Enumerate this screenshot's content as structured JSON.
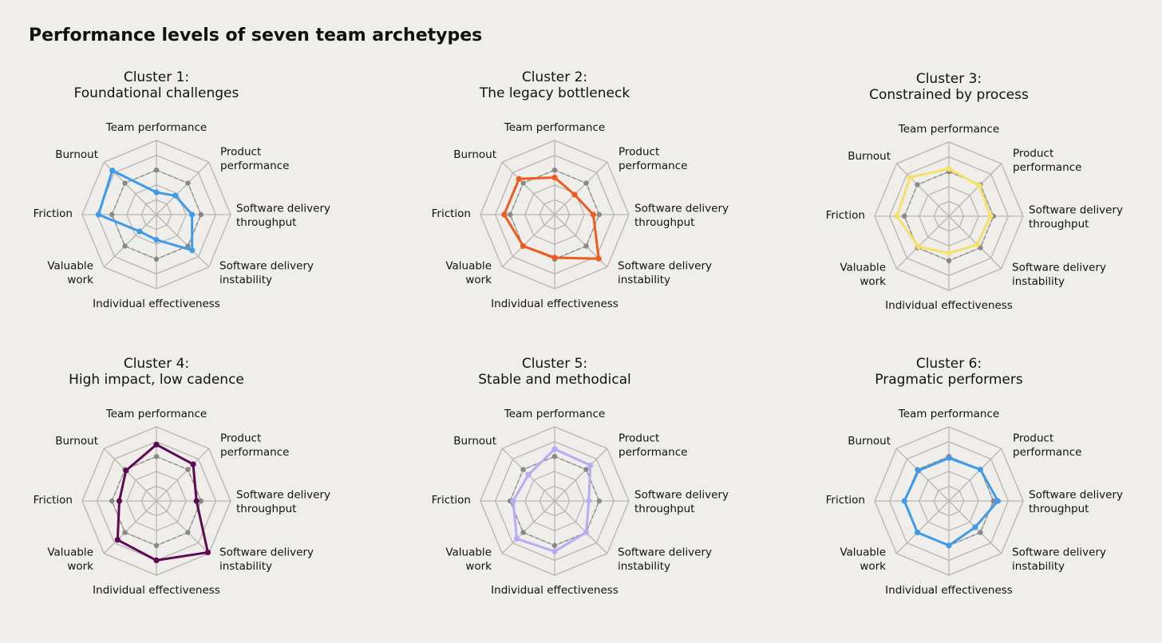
{
  "title": "Performance levels of seven team archetypes",
  "chart_data": [
    {
      "type": "radar",
      "title": [
        "Cluster 1:",
        "Foundational challenges"
      ],
      "categories": [
        [
          "Team performance"
        ],
        [
          "Product",
          "performance"
        ],
        [
          "Software delivery",
          "throughput"
        ],
        [
          "Software delivery",
          "instability"
        ],
        [
          "Individual effectiveness"
        ],
        [
          "Valuable",
          "work"
        ],
        [
          "Friction"
        ],
        [
          "Burnout"
        ]
      ],
      "rlim": [
        0,
        5
      ],
      "rticks": [
        1,
        2,
        3,
        4,
        5
      ],
      "series": [
        {
          "color": "#3d9be9",
          "values": [
            1.5,
            1.8,
            2.4,
            3.4,
            1.7,
            1.6,
            3.9,
            4.2
          ]
        },
        {
          "color": "#888888",
          "dashed": true,
          "values": [
            3,
            3,
            3,
            3,
            3,
            3,
            3,
            3
          ]
        }
      ]
    },
    {
      "type": "radar",
      "title": [
        "Cluster 2:",
        "The legacy bottleneck"
      ],
      "categories": [
        [
          "Team performance"
        ],
        [
          "Product",
          "performance"
        ],
        [
          "Software delivery",
          "throughput"
        ],
        [
          "Software delivery",
          "instability"
        ],
        [
          "Individual effectiveness"
        ],
        [
          "Valuable",
          "work"
        ],
        [
          "Friction"
        ],
        [
          "Burnout"
        ]
      ],
      "rlim": [
        0,
        5
      ],
      "rticks": [
        1,
        2,
        3,
        4,
        5
      ],
      "series": [
        {
          "color": "#ef5a1f",
          "values": [
            2.5,
            1.9,
            2.6,
            4.2,
            2.9,
            3.0,
            3.4,
            3.4
          ]
        },
        {
          "color": "#888888",
          "dashed": true,
          "values": [
            3,
            3,
            3,
            3,
            3,
            3,
            3,
            3
          ]
        }
      ]
    },
    {
      "type": "radar",
      "title": [
        "Cluster 3:",
        "Constrained by process"
      ],
      "categories": [
        [
          "Team performance"
        ],
        [
          "Product",
          "performance"
        ],
        [
          "Software delivery",
          "throughput"
        ],
        [
          "Software delivery",
          "instability"
        ],
        [
          "Individual effectiveness"
        ],
        [
          "Valuable",
          "work"
        ],
        [
          "Friction"
        ],
        [
          "Burnout"
        ]
      ],
      "rlim": [
        0,
        5
      ],
      "rticks": [
        1,
        2,
        3,
        4,
        5
      ],
      "series": [
        {
          "color": "#f5e16a",
          "values": [
            3.2,
            2.9,
            2.8,
            2.7,
            2.5,
            2.9,
            3.5,
            3.7
          ]
        },
        {
          "color": "#888888",
          "dashed": true,
          "values": [
            3,
            3,
            3,
            3,
            3,
            3,
            3,
            3
          ]
        }
      ]
    },
    {
      "type": "radar",
      "title": [
        "Cluster 4:",
        "High impact, low cadence"
      ],
      "categories": [
        [
          "Team performance"
        ],
        [
          "Product",
          "performance"
        ],
        [
          "Software delivery",
          "throughput"
        ],
        [
          "Software delivery",
          "instability"
        ],
        [
          "Individual effectiveness"
        ],
        [
          "Valuable",
          "work"
        ],
        [
          "Friction"
        ],
        [
          "Burnout"
        ]
      ],
      "rlim": [
        0,
        5
      ],
      "rticks": [
        1,
        2,
        3,
        4,
        5
      ],
      "series": [
        {
          "color": "#5e0a53",
          "values": [
            3.8,
            3.5,
            2.7,
            4.9,
            4.0,
            3.7,
            2.5,
            2.9
          ]
        },
        {
          "color": "#888888",
          "dashed": true,
          "values": [
            3,
            3,
            3,
            3,
            3,
            3,
            3,
            3
          ]
        }
      ]
    },
    {
      "type": "radar",
      "title": [
        "Cluster 5:",
        "Stable and methodical"
      ],
      "categories": [
        [
          "Team performance"
        ],
        [
          "Product",
          "performance"
        ],
        [
          "Software delivery",
          "throughput"
        ],
        [
          "Software delivery",
          "instability"
        ],
        [
          "Individual effectiveness"
        ],
        [
          "Valuable",
          "work"
        ],
        [
          "Friction"
        ],
        [
          "Burnout"
        ]
      ],
      "rlim": [
        0,
        5
      ],
      "rticks": [
        1,
        2,
        3,
        4,
        5
      ],
      "series": [
        {
          "color": "#b9aaf5",
          "values": [
            3.5,
            3.4,
            2.3,
            3.0,
            3.4,
            3.6,
            2.8,
            2.5
          ]
        },
        {
          "color": "#888888",
          "dashed": true,
          "values": [
            3,
            3,
            3,
            3,
            3,
            3,
            3,
            3
          ]
        }
      ]
    },
    {
      "type": "radar",
      "title": [
        "Cluster 6:",
        "Pragmatic performers"
      ],
      "categories": [
        [
          "Team performance"
        ],
        [
          "Product",
          "performance"
        ],
        [
          "Software delivery",
          "throughput"
        ],
        [
          "Software delivery",
          "instability"
        ],
        [
          "Individual effectiveness"
        ],
        [
          "Valuable",
          "work"
        ],
        [
          "Friction"
        ],
        [
          "Burnout"
        ]
      ],
      "rlim": [
        0,
        5
      ],
      "rticks": [
        1,
        2,
        3,
        4,
        5
      ],
      "series": [
        {
          "color": "#3d9be9",
          "values": [
            2.9,
            3.0,
            3.3,
            2.5,
            3.0,
            3.0,
            3.0,
            2.9
          ]
        },
        {
          "color": "#888888",
          "dashed": true,
          "values": [
            3,
            3,
            3,
            3,
            3,
            3,
            3,
            3
          ]
        }
      ]
    }
  ]
}
